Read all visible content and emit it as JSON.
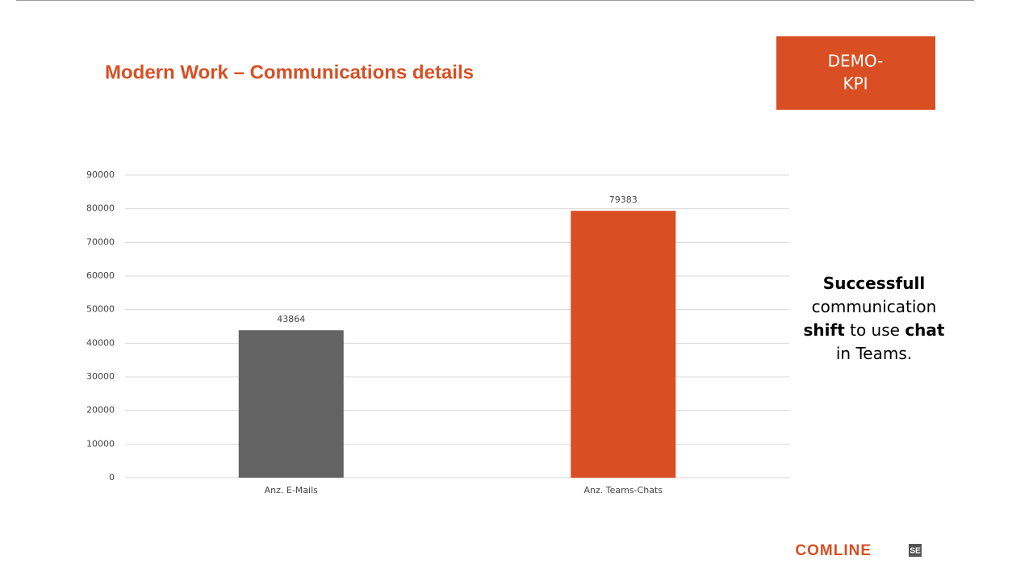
{
  "chart_data": {
    "type": "bar",
    "title": "Modern Work – Communications details",
    "categories": [
      "Anz. E-Mails",
      "Anz. Teams-Chats"
    ],
    "values": [
      43864,
      79383
    ],
    "colors": [
      "#636363",
      "#d94f23"
    ],
    "ylim": [
      0,
      90000
    ],
    "yticks": [
      0,
      10000,
      20000,
      30000,
      40000,
      50000,
      60000,
      70000,
      80000,
      90000
    ],
    "grid": true
  },
  "badge": [
    "DEMO-",
    "KPI"
  ],
  "note": [
    [
      {
        "text": "Successfull",
        "bold": true
      }
    ],
    [
      {
        "text": "communication",
        "bold": false
      }
    ],
    [
      {
        "text": "shift",
        "bold": true
      },
      {
        "text": " to use ",
        "bold": false
      },
      {
        "text": "chat",
        "bold": true
      }
    ],
    [
      {
        "text": "in Teams.",
        "bold": false
      }
    ]
  ],
  "logo": {
    "name": "COMLINE",
    "suffix": "SE"
  }
}
